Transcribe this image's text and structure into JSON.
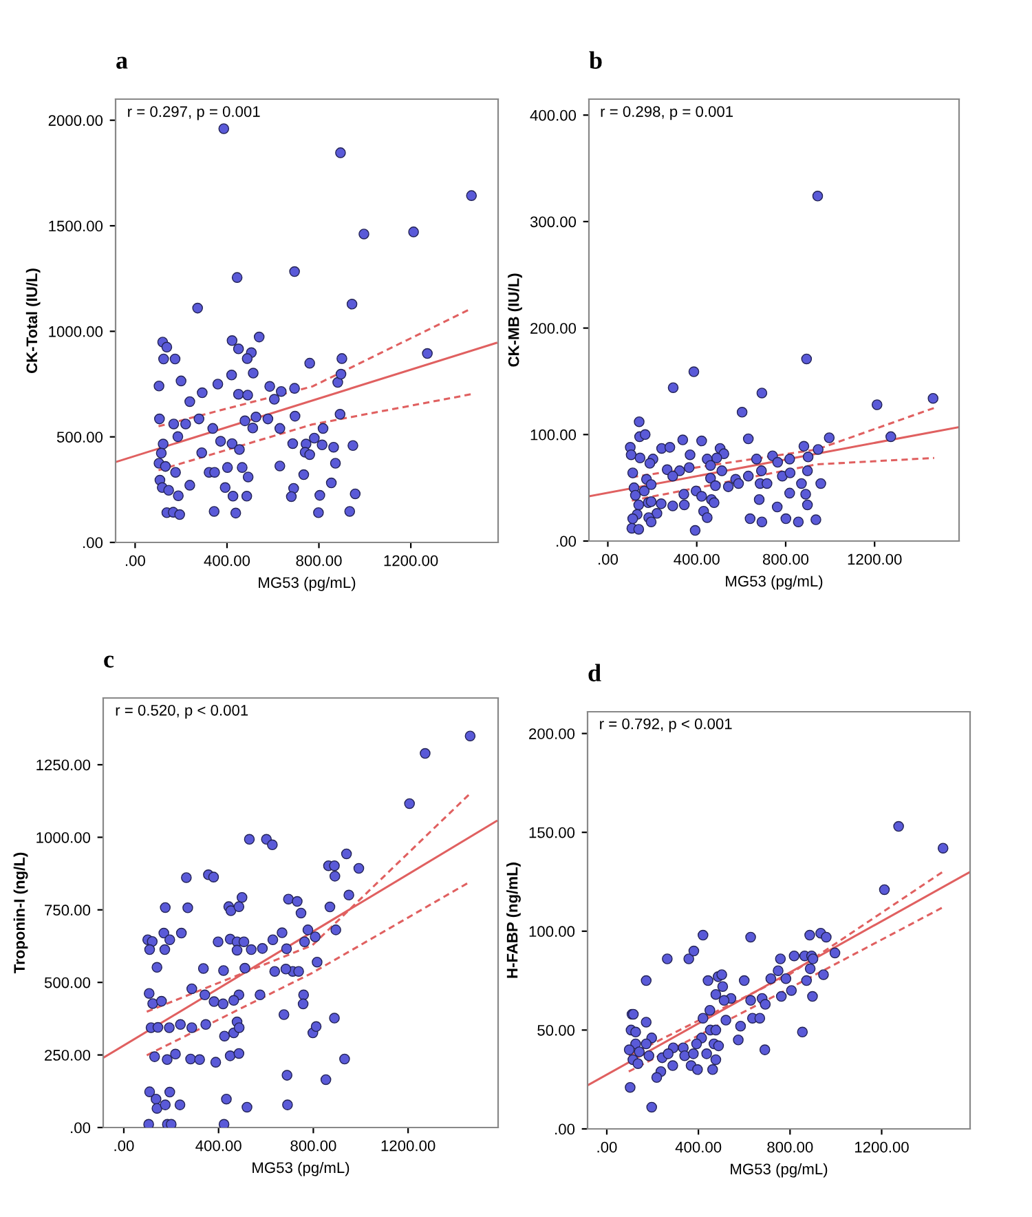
{
  "chart_data": [
    {
      "type": "scatter",
      "title": "a",
      "xlabel": "MG53 (pg/mL)",
      "ylabel": "CK-Total (IU/L)",
      "annotations": [
        "r = 0.297, p = 0.001"
      ],
      "xlim": [
        -85,
        1580
      ],
      "xticks": [
        {
          "value": 0,
          "label": ".00"
        },
        {
          "value": 400,
          "label": "400.00"
        },
        {
          "value": 800,
          "label": "800.00"
        },
        {
          "value": 1200,
          "label": "1200.00"
        }
      ],
      "ylim": [
        0,
        2100
      ],
      "yticks": [
        {
          "value": 0,
          "label": ".00"
        },
        {
          "value": 500,
          "label": "500.00"
        },
        {
          "value": 1000,
          "label": "1000.00"
        },
        {
          "value": 1500,
          "label": "1500.00"
        },
        {
          "value": 2000,
          "label": "2000.00"
        }
      ],
      "series": [
        {
          "color": "#5a5ad8",
          "marker": "circle",
          "x": [
            386,
            894,
            1464,
            996,
            1212,
            444,
            694,
            944,
            272,
            1272,
            540,
            422,
            120,
            138,
            124,
            174,
            450,
            506,
            488,
            760,
            900,
            104,
            200,
            420,
            514,
            586,
            360,
            450,
            490,
            292,
            694,
            636,
            882,
            896,
            238,
            606,
            106,
            168,
            220,
            278,
            526,
            578,
            478,
            512,
            696,
            630,
            892,
            818,
            338,
            372,
            186,
            122,
            114,
            422,
            454,
            290,
            686,
            744,
            780,
            740,
            760,
            814,
            864,
            948,
            104,
            132,
            176,
            322,
            346,
            402,
            466,
            492,
            630,
            734,
            872,
            108,
            118,
            146,
            392,
            238,
            690,
            854,
            188,
            426,
            486,
            680,
            804,
            958,
            138,
            166,
            194,
            344,
            438,
            798,
            934
          ],
          "values": [
            1960,
            1846,
            1643,
            1461,
            1471,
            1255,
            1283,
            1129,
            1110,
            895,
            973,
            956,
            949,
            925,
            869,
            869,
            917,
            899,
            871,
            849,
            871,
            741,
            765,
            793,
            802,
            739,
            750,
            702,
            698,
            709,
            730,
            715,
            758,
            797,
            667,
            678,
            585,
            561,
            561,
            585,
            594,
            585,
            576,
            542,
            598,
            540,
            607,
            540,
            540,
            479,
            501,
            466,
            423,
            468,
            440,
            425,
            468,
            466,
            494,
            427,
            416,
            462,
            451,
            459,
            375,
            360,
            332,
            332,
            332,
            355,
            355,
            310,
            362,
            321,
            375,
            295,
            260,
            247,
            260,
            271,
            256,
            282,
            221,
            219,
            219,
            217,
            223,
            230,
            141,
            143,
            132,
            147,
            139,
            141,
            147
          ]
        },
        {
          "type": "line",
          "color": "#e06060",
          "line_style": "solid",
          "x": [
            -84,
            1572
          ],
          "values": [
            381,
            945
          ]
        },
        {
          "type": "line",
          "color": "#e06060",
          "line_style": "dashed",
          "x": [
            102,
            772,
            1462
          ],
          "values": [
            550,
            739,
            1107
          ]
        },
        {
          "type": "line",
          "color": "#e06060",
          "line_style": "dashed",
          "x": [
            102,
            772,
            1462
          ],
          "values": [
            342,
            559,
            702
          ]
        }
      ]
    },
    {
      "type": "scatter",
      "title": "b",
      "xlabel": "MG53 (pg/mL)",
      "ylabel": "CK-MB (IU/L)",
      "annotations": [
        "r = 0.298, p = 0.001"
      ],
      "xlim": [
        -85,
        1580
      ],
      "xticks": [
        {
          "value": 0,
          "label": ".00"
        },
        {
          "value": 400,
          "label": "400.00"
        },
        {
          "value": 800,
          "label": "800.00"
        },
        {
          "value": 1200,
          "label": "1200.00"
        }
      ],
      "ylim": [
        0,
        415
      ],
      "yticks": [
        {
          "value": 0,
          "label": ".00"
        },
        {
          "value": 100,
          "label": "100.00"
        },
        {
          "value": 200,
          "label": "200.00"
        },
        {
          "value": 300,
          "label": "300.00"
        },
        {
          "value": 400,
          "label": "400.00"
        }
      ],
      "series": [
        {
          "color": "#5a5ad8",
          "marker": "circle",
          "x": [
            944,
            894,
            387,
            294,
            693,
            1211,
            1463,
            604,
            141,
            1273,
            996,
            143,
            168,
            101,
            105,
            337,
            422,
            242,
            279,
            370,
            145,
            203,
            189,
            505,
            522,
            490,
            447,
            632,
            882,
            946,
            901,
            669,
            741,
            764,
            818,
            366,
            267,
            323,
            112,
            174,
            292,
            462,
            462,
            513,
            632,
            691,
            785,
            820,
            898,
            575,
            588,
            542,
            484,
            342,
            397,
            422,
            118,
            164,
            195,
            685,
            716,
            871,
            958,
            818,
            890,
            681,
            124,
            182,
            195,
            240,
            466,
            478,
            344,
            762,
            898,
            292,
            139,
            221,
            184,
            431,
            447,
            132,
            112,
            640,
            693,
            801,
            857,
            936,
            195,
            108,
            139,
            393
          ],
          "values": [
            324,
            171,
            159,
            144,
            139,
            128,
            134,
            121,
            112,
            98,
            97,
            98,
            100,
            88,
            81,
            95,
            94,
            87,
            88,
            81,
            78,
            77,
            73,
            87,
            82,
            78,
            77,
            96,
            89,
            86,
            79,
            77,
            80,
            74,
            77,
            69,
            67,
            66,
            64,
            58,
            61,
            71,
            59,
            66,
            61,
            66,
            61,
            64,
            66,
            58,
            54,
            51,
            52,
            44,
            47,
            42,
            50,
            47,
            53,
            54,
            54,
            54,
            54,
            45,
            44,
            39,
            43,
            36,
            37,
            35,
            39,
            36,
            34,
            32,
            34,
            33,
            34,
            26,
            22,
            28,
            22,
            25,
            21,
            21,
            18,
            21,
            18,
            20,
            18,
            12,
            11,
            10
          ]
        },
        {
          "type": "line",
          "color": "#e06060",
          "line_style": "solid",
          "x": [
            -85,
            1580
          ],
          "values": [
            42,
            107
          ]
        },
        {
          "type": "line",
          "color": "#e06060",
          "line_style": "dashed",
          "x": [
            108,
            940,
            1468
          ],
          "values": [
            60,
            86,
            125
          ]
        },
        {
          "type": "line",
          "color": "#e06060",
          "line_style": "dashed",
          "x": [
            108,
            940,
            1468
          ],
          "values": [
            38,
            72,
            78
          ]
        }
      ]
    },
    {
      "type": "scatter",
      "title": "c",
      "xlabel": "MG53 (pg/mL)",
      "ylabel": "Troponin-I (ng/L)",
      "annotations": [
        "r = 0.520, p < 0.001"
      ],
      "xlim": [
        -87,
        1580
      ],
      "xticks": [
        {
          "value": 0,
          "label": ".00"
        },
        {
          "value": 400,
          "label": "400.00"
        },
        {
          "value": 800,
          "label": "800.00"
        },
        {
          "value": 1200,
          "label": "1200.00"
        }
      ],
      "ylim": [
        0,
        1480
      ],
      "yticks": [
        {
          "value": 0,
          "label": ".00"
        },
        {
          "value": 250,
          "label": "250.00"
        },
        {
          "value": 500,
          "label": "500.00"
        },
        {
          "value": 750,
          "label": "750.00"
        },
        {
          "value": 1000,
          "label": "1000.00"
        },
        {
          "value": 1250,
          "label": "1250.00"
        }
      ],
      "series": [
        {
          "color": "#5a5ad8",
          "marker": "circle",
          "x": [
            1462,
            1272,
            1206,
            530,
            602,
            627,
            940,
            992,
            864,
            889,
            891,
            264,
            357,
            379,
            950,
            499,
            443,
            452,
            486,
            695,
            732,
            748,
            870,
            175,
            270,
            243,
            169,
            101,
            120,
            194,
            398,
            449,
            478,
            507,
            668,
            629,
            777,
            763,
            808,
            895,
            109,
            173,
            478,
            538,
            585,
            687,
            816,
            140,
            336,
            421,
            511,
            637,
            713,
            738,
            684,
            107,
            122,
            159,
            287,
            342,
            486,
            575,
            759,
            757,
            381,
            419,
            464,
            115,
            144,
            192,
            239,
            287,
            346,
            425,
            464,
            478,
            487,
            676,
            798,
            812,
            889,
            130,
            183,
            218,
            282,
            320,
            388,
            449,
            486,
            932,
            689,
            853,
            109,
            136,
            140,
            175,
            194,
            237,
            433,
            520,
            691,
            105,
            184,
            200,
            423
          ],
          "values": [
            1349,
            1289,
            1116,
            993,
            993,
            974,
            943,
            893,
            902,
            902,
            866,
            861,
            871,
            863,
            801,
            793,
            761,
            747,
            761,
            787,
            779,
            739,
            760,
            758,
            757,
            670,
            670,
            647,
            641,
            647,
            640,
            649,
            640,
            640,
            671,
            647,
            681,
            640,
            657,
            681,
            613,
            613,
            611,
            613,
            617,
            616,
            570,
            552,
            548,
            541,
            549,
            538,
            538,
            538,
            546,
            462,
            427,
            435,
            478,
            457,
            457,
            457,
            457,
            426,
            434,
            426,
            438,
            344,
            345,
            344,
            355,
            344,
            355,
            315,
            326,
            364,
            344,
            389,
            326,
            348,
            377,
            244,
            234,
            253,
            236,
            234,
            225,
            247,
            255,
            236,
            180,
            165,
            123,
            98,
            66,
            78,
            122,
            78,
            98,
            70,
            78,
            11,
            11,
            11,
            11
          ]
        },
        {
          "type": "line",
          "color": "#e06060",
          "line_style": "solid",
          "x": [
            -87,
            1573
          ],
          "values": [
            240,
            1056
          ]
        },
        {
          "type": "line",
          "color": "#e06060",
          "line_style": "dashed",
          "x": [
            97,
            796,
            1462
          ],
          "values": [
            399,
            628,
            1151
          ]
        },
        {
          "type": "line",
          "color": "#e06060",
          "line_style": "dashed",
          "x": [
            97,
            796,
            1462
          ],
          "values": [
            249,
            533,
            847
          ]
        }
      ]
    },
    {
      "type": "scatter",
      "title": "d",
      "xlabel": "MG53 (pg/mL)",
      "ylabel": "H-FABP (ng/mL)",
      "annotations": [
        "r = 0.792, p < 0.001"
      ],
      "xlim": [
        -84,
        1586
      ],
      "xticks": [
        {
          "value": 0,
          "label": ".00"
        },
        {
          "value": 400,
          "label": "400.00"
        },
        {
          "value": 800,
          "label": "800.00"
        },
        {
          "value": 1200,
          "label": "1200.00"
        }
      ],
      "ylim": [
        0,
        211
      ],
      "yticks": [
        {
          "value": 0,
          "label": ".00"
        },
        {
          "value": 50,
          "label": "50.00"
        },
        {
          "value": 100,
          "label": "100.00"
        },
        {
          "value": 150,
          "label": "150.00"
        },
        {
          "value": 200,
          "label": "200.00"
        }
      ],
      "series": [
        {
          "color": "#5a5ad8",
          "marker": "circle",
          "x": [
            1274,
            1468,
            1212,
            420,
            628,
            934,
            958,
            886,
            996,
            264,
            358,
            380,
            818,
            758,
            864,
            894,
            900,
            172,
            442,
            486,
            502,
            600,
            716,
            748,
            782,
            872,
            888,
            946,
            476,
            506,
            542,
            512,
            628,
            678,
            692,
            762,
            806,
            898,
            450,
            420,
            520,
            636,
            668,
            584,
            110,
            116,
            172,
            106,
            126,
            452,
            476,
            854,
            574,
            414,
            468,
            488,
            392,
            334,
            290,
            196,
            172,
            126,
            142,
            98,
            184,
            114,
            136,
            242,
            268,
            340,
            378,
            436,
            476,
            690,
            368,
            288,
            396,
            462,
            236,
            218,
            102,
            196
          ],
          "values": [
            153,
            142,
            121,
            98,
            97,
            99,
            97,
            98,
            89,
            86,
            86,
            90,
            87.5,
            86,
            87.5,
            87.5,
            86,
            75,
            75,
            77,
            78,
            75,
            76,
            80,
            76,
            75,
            81,
            78,
            68,
            72,
            66,
            65,
            65,
            66,
            63,
            67,
            70,
            67,
            60,
            56,
            55,
            56,
            56,
            52,
            58,
            58,
            54,
            50,
            49,
            50,
            50,
            49,
            45,
            46,
            43,
            42,
            43,
            41,
            41,
            46,
            43,
            43,
            39,
            40,
            37,
            35,
            33,
            36,
            38,
            37,
            38,
            38,
            35,
            40,
            32,
            32,
            30,
            30,
            29,
            26,
            21,
            11
          ]
        },
        {
          "type": "line",
          "color": "#e06060",
          "line_style": "solid",
          "x": [
            -84,
            1586
          ],
          "values": [
            22,
            130
          ]
        },
        {
          "type": "line",
          "color": "#e06060",
          "line_style": "dashed",
          "x": [
            96,
            796,
            1466
          ],
          "values": [
            37,
            78,
            130
          ]
        },
        {
          "type": "line",
          "color": "#e06060",
          "line_style": "dashed",
          "x": [
            96,
            796,
            1466
          ],
          "values": [
            29,
            71,
            112
          ]
        }
      ]
    }
  ]
}
